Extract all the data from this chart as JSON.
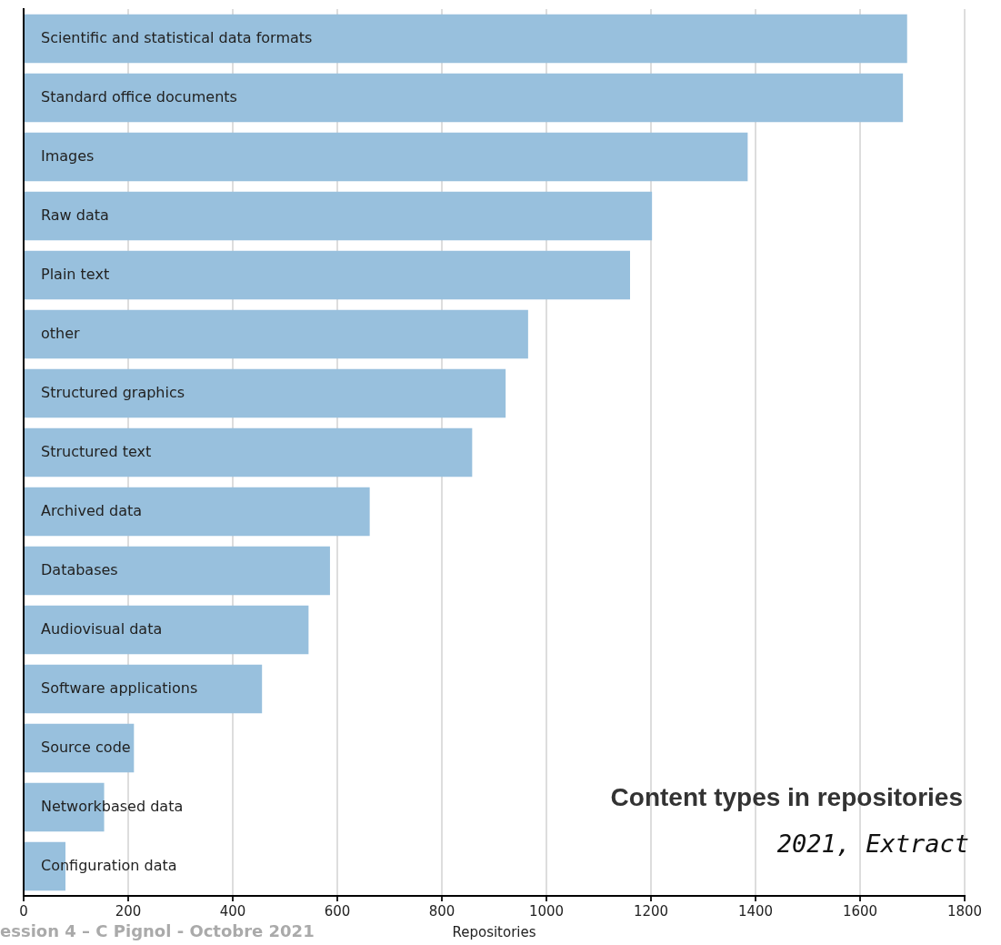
{
  "chart_data": {
    "type": "bar",
    "orientation": "horizontal",
    "title": "Content types in repositories",
    "subtitle": "2021, Extract",
    "xlabel": "Repositories",
    "categories": [
      "Scientific and statistical data formats",
      "Standard office documents",
      "Images",
      "Raw data",
      "Plain text",
      "other",
      "Structured graphics",
      "Structured text",
      "Archived data",
      "Databases",
      "Audiovisual data",
      "Software applications",
      "Source code",
      "Networkbased data",
      "Configuration data"
    ],
    "values": [
      1690,
      1682,
      1385,
      1202,
      1160,
      965,
      922,
      858,
      662,
      586,
      545,
      456,
      211,
      154,
      80
    ],
    "color": "#98c0dd",
    "xlim": [
      0,
      1800
    ],
    "xticks": [
      0,
      200,
      400,
      600,
      800,
      1000,
      1200,
      1400,
      1600,
      1800
    ],
    "grid": "x",
    "tick_labels": "x",
    "legend": false,
    "annotations": [
      "ession 4 – C Pignol - Octobre 2021"
    ]
  }
}
